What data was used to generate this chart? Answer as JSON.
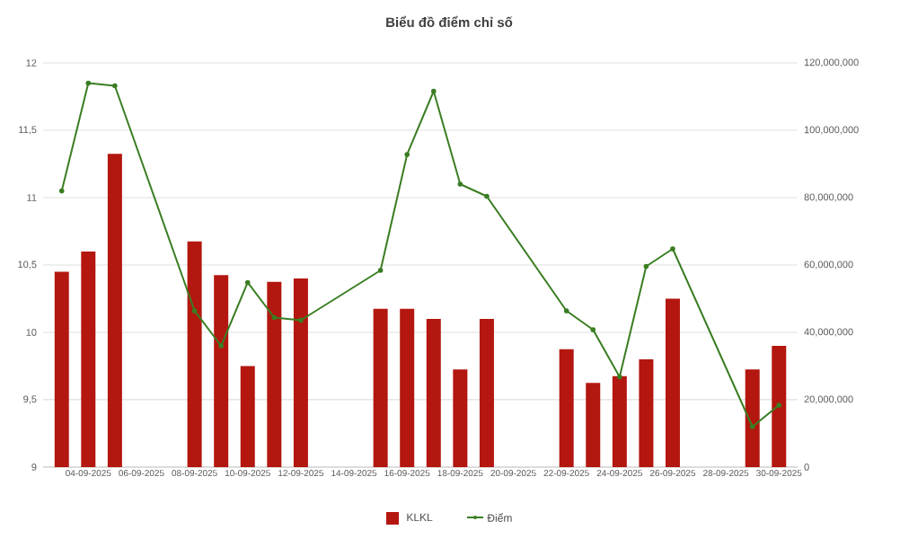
{
  "chart_data": {
    "type": "bar",
    "title": "Biểu đồ điểm chỉ số",
    "categories": [
      null,
      "04-09-2025",
      null,
      "06-09-2025",
      null,
      "08-09-2025",
      null,
      "10-09-2025",
      null,
      "12-09-2025",
      null,
      "14-09-2025",
      null,
      "16-09-2025",
      null,
      "18-09-2025",
      null,
      "20-09-2025",
      null,
      "22-09-2025",
      null,
      "24-09-2025",
      null,
      "26-09-2025",
      null,
      "28-09-2025",
      null,
      "30-09-2025"
    ],
    "series": [
      {
        "name": "KLKL",
        "axis": "y2",
        "color": "#b3170f",
        "values": [
          58000000,
          64000000,
          93000000,
          null,
          null,
          67000000,
          57000000,
          30000000,
          55000000,
          56000000,
          null,
          null,
          47000000,
          47000000,
          44000000,
          29000000,
          44000000,
          null,
          null,
          35000000,
          25000000,
          27000000,
          32000000,
          50000000,
          null,
          null,
          29000000,
          36000000
        ]
      },
      {
        "name": "Điểm",
        "type": "line",
        "axis": "y",
        "color": "#3a7d22",
        "marker": "circle",
        "values": [
          11.05,
          11.85,
          11.83,
          null,
          null,
          10.16,
          9.9,
          10.37,
          10.11,
          10.09,
          null,
          null,
          10.46,
          11.32,
          11.79,
          11.1,
          11.01,
          null,
          null,
          10.16,
          10.02,
          9.67,
          10.49,
          10.62,
          null,
          null,
          9.3,
          9.46
        ]
      }
    ],
    "ylim": [
      9,
      12
    ],
    "yticks": [
      9,
      {
        "value": 9.5,
        "label": "9,5"
      },
      10,
      {
        "value": 10.5,
        "label": "10,5"
      },
      11,
      {
        "value": 11.5,
        "label": "11,5"
      },
      12
    ],
    "y2lim": [
      0,
      120000000
    ],
    "y2ticks": [
      0,
      {
        "value": 20000000,
        "label": "20,000,000"
      },
      {
        "value": 40000000,
        "label": "40,000,000"
      },
      {
        "value": 60000000,
        "label": "60,000,000"
      },
      {
        "value": 80000000,
        "label": "80,000,000"
      },
      {
        "value": 100000000,
        "label": "100,000,000"
      },
      {
        "value": 120000000,
        "label": "120,000,000"
      }
    ],
    "grid": "y",
    "legend": "bottom"
  }
}
